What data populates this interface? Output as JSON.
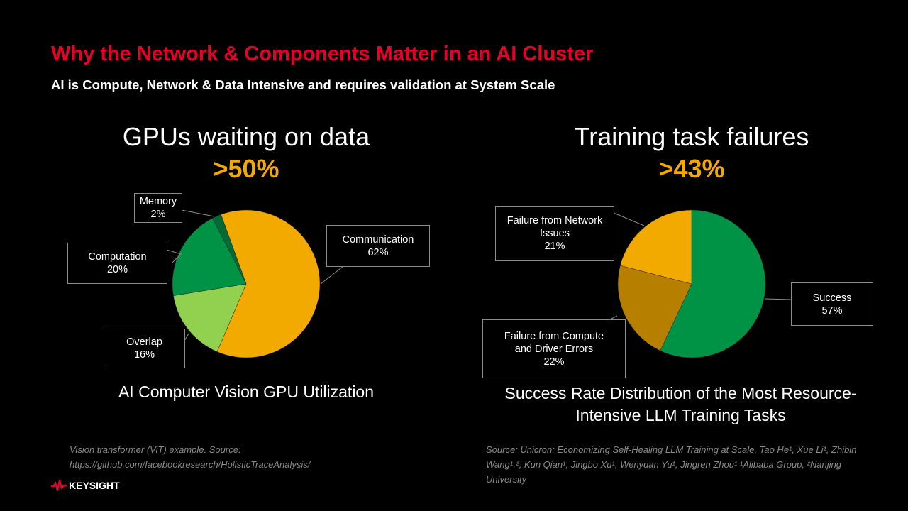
{
  "header": {
    "title": "Why the Network & Components Matter in an AI Cluster",
    "subtitle": "AI is Compute, Network & Data Intensive and requires validation at System Scale"
  },
  "colors": {
    "accent": "#e90029",
    "highlight": "#f5a800"
  },
  "chart_data": [
    {
      "type": "pie",
      "title": "GPUs waiting on data",
      "stat": ">50%",
      "caption": "AI Computer Vision GPU Utilization",
      "slices": [
        {
          "label": "Communication",
          "value": 62,
          "text": "62%",
          "color": "#f2a900"
        },
        {
          "label": "Overlap",
          "value": 16,
          "text": "16%",
          "color": "#92d050"
        },
        {
          "label": "Computation",
          "value": 20,
          "text": "20%",
          "color": "#009245"
        },
        {
          "label": "Memory",
          "value": 2,
          "text": "2%",
          "color": "#006b35"
        }
      ]
    },
    {
      "type": "pie",
      "title": "Training task failures",
      "stat": ">43%",
      "caption": "Success Rate Distribution of the Most Resource-Intensive LLM Training Tasks",
      "slices": [
        {
          "label": "Success",
          "value": 57,
          "text": "57%",
          "color": "#009245"
        },
        {
          "label": "Failure from Compute and Driver Errors",
          "value": 22,
          "text": "22%",
          "color": "#b77f00"
        },
        {
          "label": "Failure from Network Issues",
          "value": 21,
          "text": "21%",
          "color": "#f2a900"
        }
      ]
    }
  ],
  "sources": {
    "left": [
      "Vision transformer (ViT) example. Source:",
      "https://github.com/facebookresearch/HolisticTraceAnalysis/"
    ],
    "right": "Source:  Unicron: Economizing Self-Healing LLM Training at Scale,  Tao He¹, Xue Li¹, Zhibin Wang¹˒², Kun Qian¹, Jingbo Xu¹, Wenyuan Yu¹, Jingren Zhou¹ ¹Alibaba Group, ²Nanjing University"
  },
  "logo": {
    "text": "KEYSIGHT"
  }
}
